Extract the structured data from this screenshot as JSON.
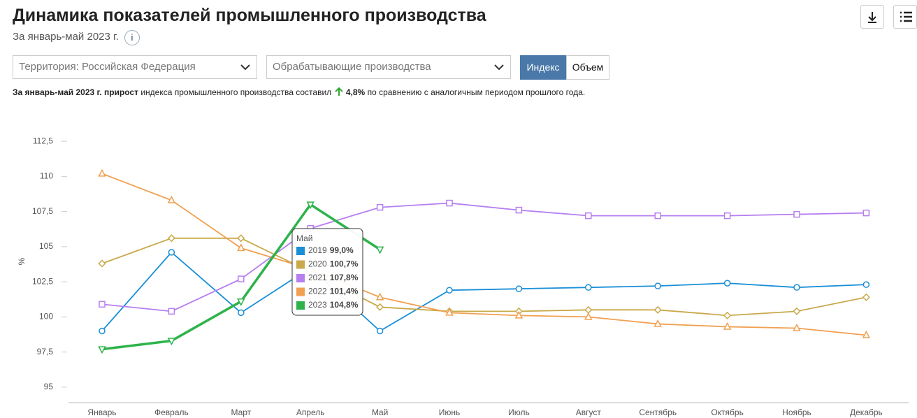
{
  "header": {
    "title": "Динамика показателей промышленного производства",
    "subtitle": "За январь-май 2023 г."
  },
  "filters": {
    "territory": "Территория: Российская  Федерация",
    "industry": "Обрабатывающие производства",
    "modes": [
      "Индекс",
      "Объем"
    ]
  },
  "summary": {
    "lead": "За январь-май 2023 г. прирост",
    "middle": "индекса промышленного производства составил",
    "value": "4,8%",
    "end": "по сравнению с аналогичным периодом прошлого года."
  },
  "chart_data": {
    "type": "line",
    "y_label": "%",
    "categories": [
      "Январь",
      "Февраль",
      "Март",
      "Апрель",
      "Май",
      "Июнь",
      "Июль",
      "Август",
      "Сентябрь",
      "Октябрь",
      "Ноябрь",
      "Декабрь"
    ],
    "ylim": [
      93.9,
      113.6
    ],
    "yticks": [
      95,
      {
        "value": 97.5,
        "label": "97,5"
      },
      100,
      {
        "value": 102.5,
        "label": "102,5"
      },
      105,
      {
        "value": 107.5,
        "label": "107,5"
      },
      110,
      {
        "value": 112.5,
        "label": "112,5"
      }
    ],
    "grid": false,
    "series": [
      {
        "name": "2019",
        "color": "#1b8fd6",
        "marker": "circle",
        "values": [
          99.0,
          104.6,
          100.3,
          103.5,
          99.0,
          101.9,
          102.0,
          102.1,
          102.2,
          102.4,
          102.1,
          102.3
        ]
      },
      {
        "name": "2020",
        "color": "#c9a94a",
        "marker": "diamond",
        "values": [
          103.8,
          105.6,
          105.6,
          103.2,
          100.7,
          100.4,
          100.4,
          100.5,
          100.5,
          100.1,
          100.4,
          101.4
        ]
      },
      {
        "name": "2021",
        "color": "#b67ef0",
        "marker": "square",
        "values": [
          100.9,
          100.4,
          102.7,
          106.3,
          107.8,
          108.1,
          107.6,
          107.2,
          107.2,
          107.2,
          107.3,
          107.4
        ]
      },
      {
        "name": "2022",
        "color": "#f0a050",
        "marker": "triangle-up",
        "values": [
          110.2,
          108.3,
          104.9,
          103.4,
          101.4,
          100.3,
          100.1,
          100.0,
          99.5,
          99.3,
          99.2,
          98.7
        ]
      },
      {
        "name": "2023",
        "color": "#2db34a",
        "marker": "triangle-down",
        "width": 3.5,
        "values": [
          97.7,
          98.3,
          101.1,
          108.0,
          104.8,
          null,
          null,
          null,
          null,
          null,
          null,
          null
        ]
      }
    ],
    "tooltip": {
      "title": "Май",
      "labels": [
        "99,0%",
        "100,7%",
        "107,8%",
        "101,4%",
        "104,8%"
      ]
    }
  }
}
